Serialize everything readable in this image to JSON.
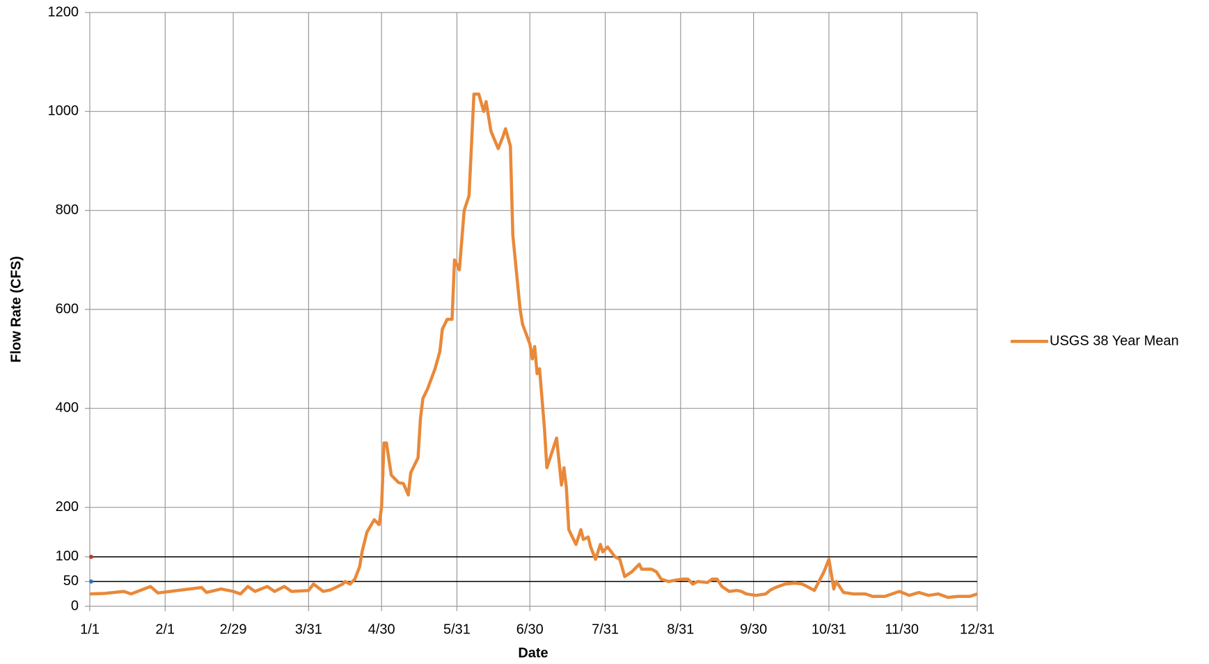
{
  "chart_data": {
    "type": "line",
    "x_label": "Date",
    "y_label": "Flow Rate (CFS)",
    "x": [
      0,
      6,
      14,
      17,
      25,
      28,
      33,
      46,
      48,
      54,
      59,
      62,
      65,
      68,
      73,
      76,
      80,
      83,
      90,
      92,
      96,
      99,
      102,
      104,
      105,
      107,
      109,
      111,
      112,
      114,
      117,
      119,
      120,
      121,
      122,
      124,
      127,
      129,
      131,
      132,
      135,
      136,
      137,
      139,
      142,
      144,
      145,
      147,
      149,
      150,
      152,
      154,
      156,
      158,
      160,
      162,
      163,
      165,
      168,
      170,
      171,
      173,
      174,
      177,
      178,
      181,
      182,
      183,
      184,
      185,
      187,
      188,
      190,
      192,
      194,
      195,
      196,
      197,
      198,
      200,
      202,
      203,
      205,
      206,
      208,
      210,
      211,
      213,
      216,
      218,
      220,
      223,
      226,
      227,
      231,
      233,
      235,
      238,
      241,
      244,
      246,
      248,
      250,
      254,
      256,
      258,
      260,
      263,
      266,
      268,
      270,
      274,
      278,
      280,
      282,
      286,
      290,
      293,
      295,
      298,
      302,
      304,
      306,
      307,
      310,
      314,
      319,
      322,
      327,
      333,
      337,
      341,
      345,
      349,
      353,
      357,
      362,
      365
    ],
    "series": [
      {
        "name": "USGS 38 Year Mean",
        "color": "#e8893a",
        "values": [
          25,
          26,
          30,
          25,
          40,
          27,
          30,
          38,
          28,
          35,
          30,
          25,
          40,
          30,
          40,
          30,
          40,
          30,
          32,
          45,
          30,
          33,
          40,
          45,
          50,
          45,
          55,
          80,
          110,
          150,
          175,
          165,
          200,
          330,
          330,
          265,
          250,
          248,
          225,
          270,
          300,
          380,
          420,
          440,
          480,
          515,
          560,
          580,
          580,
          700,
          680,
          800,
          830,
          1035,
          1035,
          1000,
          1020,
          960,
          925,
          950,
          965,
          930,
          750,
          600,
          570,
          530,
          500,
          525,
          470,
          480,
          360,
          280,
          310,
          340,
          245,
          280,
          240,
          155,
          145,
          125,
          155,
          135,
          140,
          120,
          95,
          125,
          110,
          120,
          100,
          95,
          60,
          70,
          85,
          75,
          75,
          70,
          55,
          50,
          53,
          55,
          55,
          45,
          50,
          48,
          55,
          55,
          40,
          30,
          32,
          30,
          25,
          22,
          25,
          33,
          38,
          45,
          47,
          45,
          40,
          32,
          70,
          95,
          35,
          50,
          28,
          25,
          25,
          20,
          20,
          30,
          22,
          28,
          22,
          25,
          18,
          20,
          20,
          25
        ]
      }
    ],
    "xlim": [
      0,
      365
    ],
    "xticks": [
      {
        "value": 0,
        "label": "1/1"
      },
      {
        "value": 31,
        "label": "2/1"
      },
      {
        "value": 59,
        "label": "2/29"
      },
      {
        "value": 90,
        "label": "3/31"
      },
      {
        "value": 120,
        "label": "4/30"
      },
      {
        "value": 151,
        "label": "5/31"
      },
      {
        "value": 181,
        "label": "6/30"
      },
      {
        "value": 212,
        "label": "7/31"
      },
      {
        "value": 243,
        "label": "8/31"
      },
      {
        "value": 273,
        "label": "9/30"
      },
      {
        "value": 304,
        "label": "10/31"
      },
      {
        "value": 334,
        "label": "11/30"
      },
      {
        "value": 365,
        "label": "12/31"
      }
    ],
    "ylim": [
      0,
      1200
    ],
    "yticks": [
      0,
      50,
      100,
      200,
      400,
      600,
      800,
      1000,
      1200
    ],
    "reference_lines": [
      {
        "value": 100,
        "color": "#000000",
        "marker_color": "#c0392b"
      },
      {
        "value": 50,
        "color": "#000000",
        "marker_color": "#2e75b6"
      }
    ],
    "grid": true,
    "legend": "right"
  }
}
